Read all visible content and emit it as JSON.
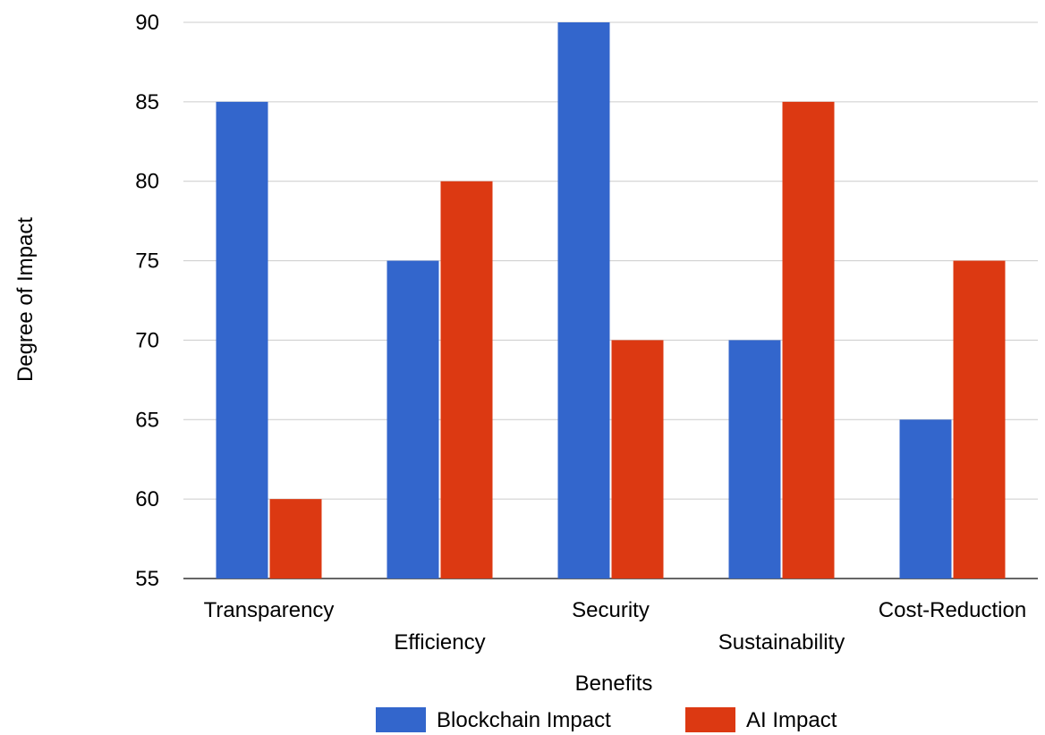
{
  "chart_data": {
    "type": "bar",
    "title": "",
    "xlabel": "Benefits",
    "ylabel": "Degree of Impact",
    "ylim": [
      55,
      90
    ],
    "yticks": [
      55,
      60,
      65,
      70,
      75,
      80,
      85,
      90
    ],
    "grid": true,
    "legend_position": "bottom",
    "categories": [
      "Transparency",
      "Efficiency",
      "Security",
      "Sustainability",
      "Cost-Reduction"
    ],
    "series": [
      {
        "name": "Blockchain Impact",
        "color": "#3366cc",
        "values": [
          85,
          75,
          90,
          70,
          65
        ]
      },
      {
        "name": "AI Impact",
        "color": "#dc3912",
        "values": [
          60,
          80,
          70,
          85,
          75
        ]
      }
    ]
  }
}
